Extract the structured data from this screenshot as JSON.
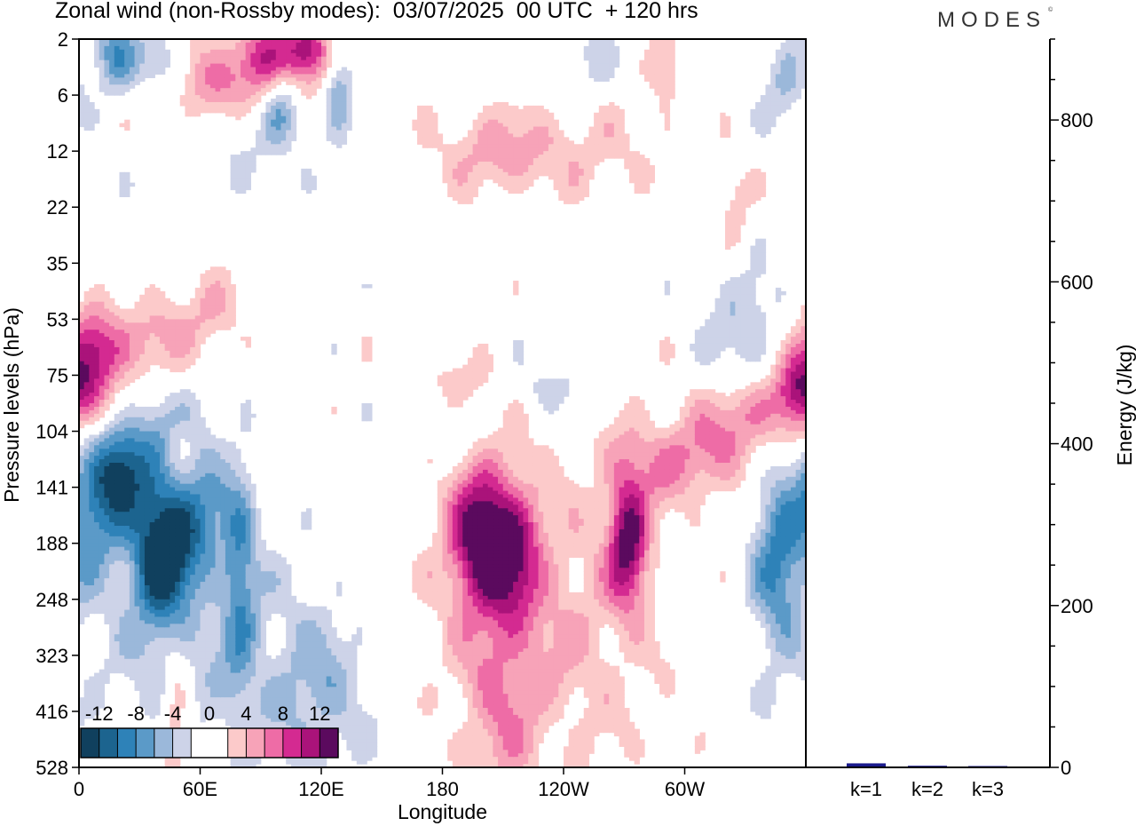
{
  "header": {
    "title": "Zonal wind (non-Rossby modes):  03/07/2025  00 UTC  + 120 hrs",
    "brand": "MODES",
    "brand_mark": "©"
  },
  "chart_data": [
    {
      "type": "heatmap",
      "title": "Zonal wind (non-Rossby modes):  03/07/2025  00 UTC  + 120 hrs",
      "xlabel": "Longitude",
      "ylabel": "Pressure levels (hPa)",
      "x_tick_labels": [
        "0",
        "60E",
        "120E",
        "180",
        "120W",
        "60W"
      ],
      "x_ticks_deg": [
        0,
        60,
        120,
        180,
        240,
        300
      ],
      "xlim_deg": [
        0,
        360
      ],
      "y_tick_labels": [
        "2",
        "6",
        "12",
        "22",
        "35",
        "53",
        "75",
        "104",
        "141",
        "188",
        "248",
        "323",
        "416",
        "528"
      ],
      "colorbar": {
        "tick_labels": [
          "-12",
          "-8",
          "-4",
          "0",
          "4",
          "8",
          "12"
        ],
        "levels": [
          -14,
          -12,
          -10,
          -8,
          -6,
          -4,
          -2,
          0,
          2,
          4,
          6,
          8,
          10,
          12,
          14
        ],
        "colors": [
          "#10405e",
          "#1c648f",
          "#2e82b8",
          "#5b9ac8",
          "#9bb8da",
          "#cdd3e8",
          "#ffffff",
          "#ffffff",
          "#fccaca",
          "#f7a3b8",
          "#ee6ca6",
          "#d42a91",
          "#aa137a",
          "#5b0a5e"
        ]
      },
      "features": [
        {
          "name": "negative jet core (lower)",
          "lon": 40,
          "level_index": 9.2,
          "value": -13
        },
        {
          "name": "negative band (mid, rising west)",
          "lon": 25,
          "level_index": 7.6,
          "value": -11
        },
        {
          "name": "positive core 1 (central Pacific)",
          "lon": 195,
          "level_index": 8.9,
          "value": 11
        },
        {
          "name": "positive core 2",
          "lon": 272,
          "level_index": 8.9,
          "value": 11
        },
        {
          "name": "positive band (upper east)",
          "lon": 340,
          "level_index": 6.6,
          "value": 7
        },
        {
          "name": "negative area (far east)",
          "lon": 345,
          "level_index": 9.2,
          "value": -7
        },
        {
          "name": "positive upper tropo (0E)",
          "lon": 5,
          "level_index": 5.7,
          "value": 8
        }
      ]
    },
    {
      "type": "bar",
      "categories": [
        "k=1",
        "k=2",
        "k=3"
      ],
      "values": [
        5,
        2,
        1
      ],
      "ylabel": "Energy (J/kg)",
      "ylim": [
        0,
        900
      ],
      "y_tick_labels": [
        "0",
        "200",
        "400",
        "600",
        "800"
      ],
      "y_ticks": [
        0,
        200,
        400,
        600,
        800
      ],
      "bar_color": "#1a1a8c"
    }
  ]
}
